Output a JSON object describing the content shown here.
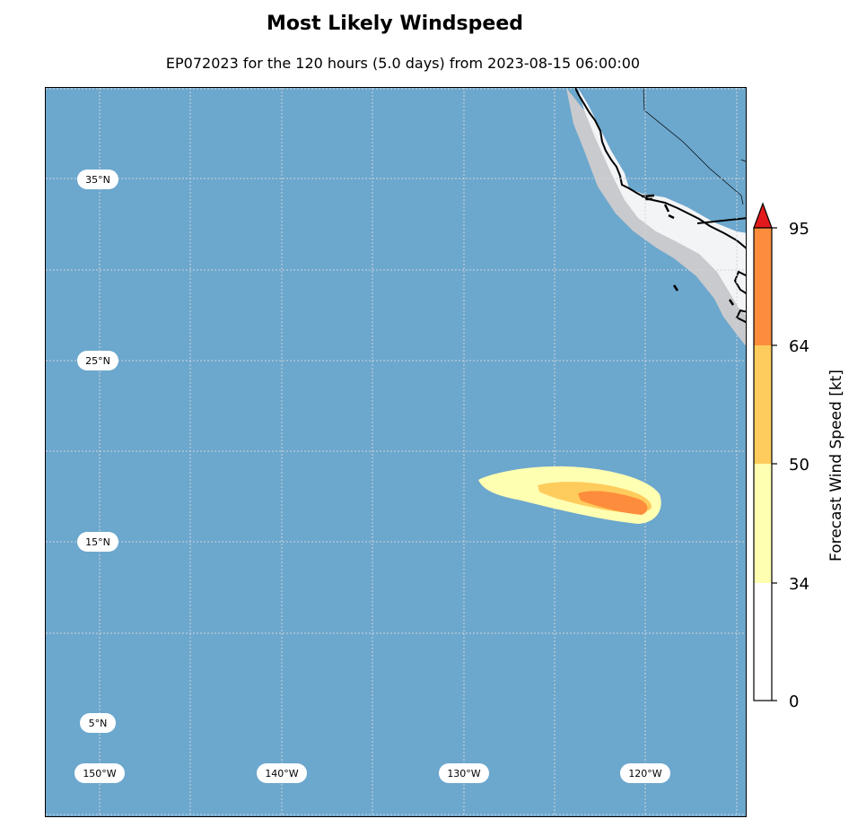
{
  "title": "Most Likely Windspeed",
  "subtitle": "EP072023 for the 120 hours (5.0 days) from 2023-08-15 06:00:00",
  "map": {
    "lat_labels": [
      "35°N",
      "25°N",
      "15°N",
      "5°N"
    ],
    "lon_labels": [
      "150°W",
      "140°W",
      "130°W",
      "120°W"
    ],
    "ocean_color": "#6ca7cd",
    "land_color": "#f3f4f6"
  },
  "colorbar": {
    "label": "Forecast Wind Speed [kt]",
    "ticks": [
      "0",
      "34",
      "50",
      "64",
      "95"
    ],
    "bands": [
      {
        "from": 0,
        "to": 34,
        "color": "#ffffff"
      },
      {
        "from": 34,
        "to": 50,
        "color": "#ffffb2"
      },
      {
        "from": 50,
        "to": 64,
        "color": "#fecc5c"
      },
      {
        "from": 64,
        "to": 95,
        "color": "#fd8d3c"
      }
    ],
    "extend_color": "#e31a1c"
  }
}
